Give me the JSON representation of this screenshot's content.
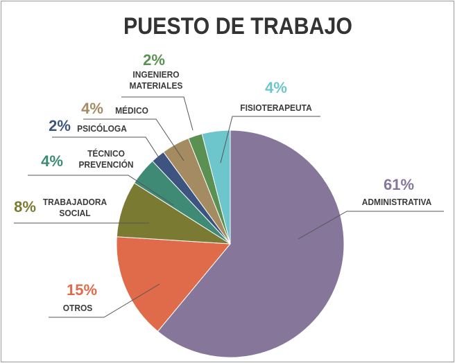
{
  "chart_data": {
    "type": "pie",
    "title": "PUESTO DE TRABAJO",
    "categories": [
      "ADMINISTRATIVA",
      "OTROS",
      "TRABAJADORA SOCIAL",
      "TÉCNICO PREVENCIÓN",
      "PSICÓLOGA",
      "MÉDICO",
      "INGENIERO MATERIALES",
      "FISIOTERAPEUTA"
    ],
    "values": [
      61,
      15,
      8,
      4,
      2,
      4,
      2,
      4
    ],
    "value_labels": [
      "61%",
      "15%",
      "8%",
      "4%",
      "2%",
      "4%",
      "2%",
      "4%"
    ],
    "colors": [
      "#85769a",
      "#e06b4a",
      "#7b7a33",
      "#3e8a74",
      "#3e5480",
      "#a48b62",
      "#5a9152",
      "#6cc6cc"
    ]
  }
}
